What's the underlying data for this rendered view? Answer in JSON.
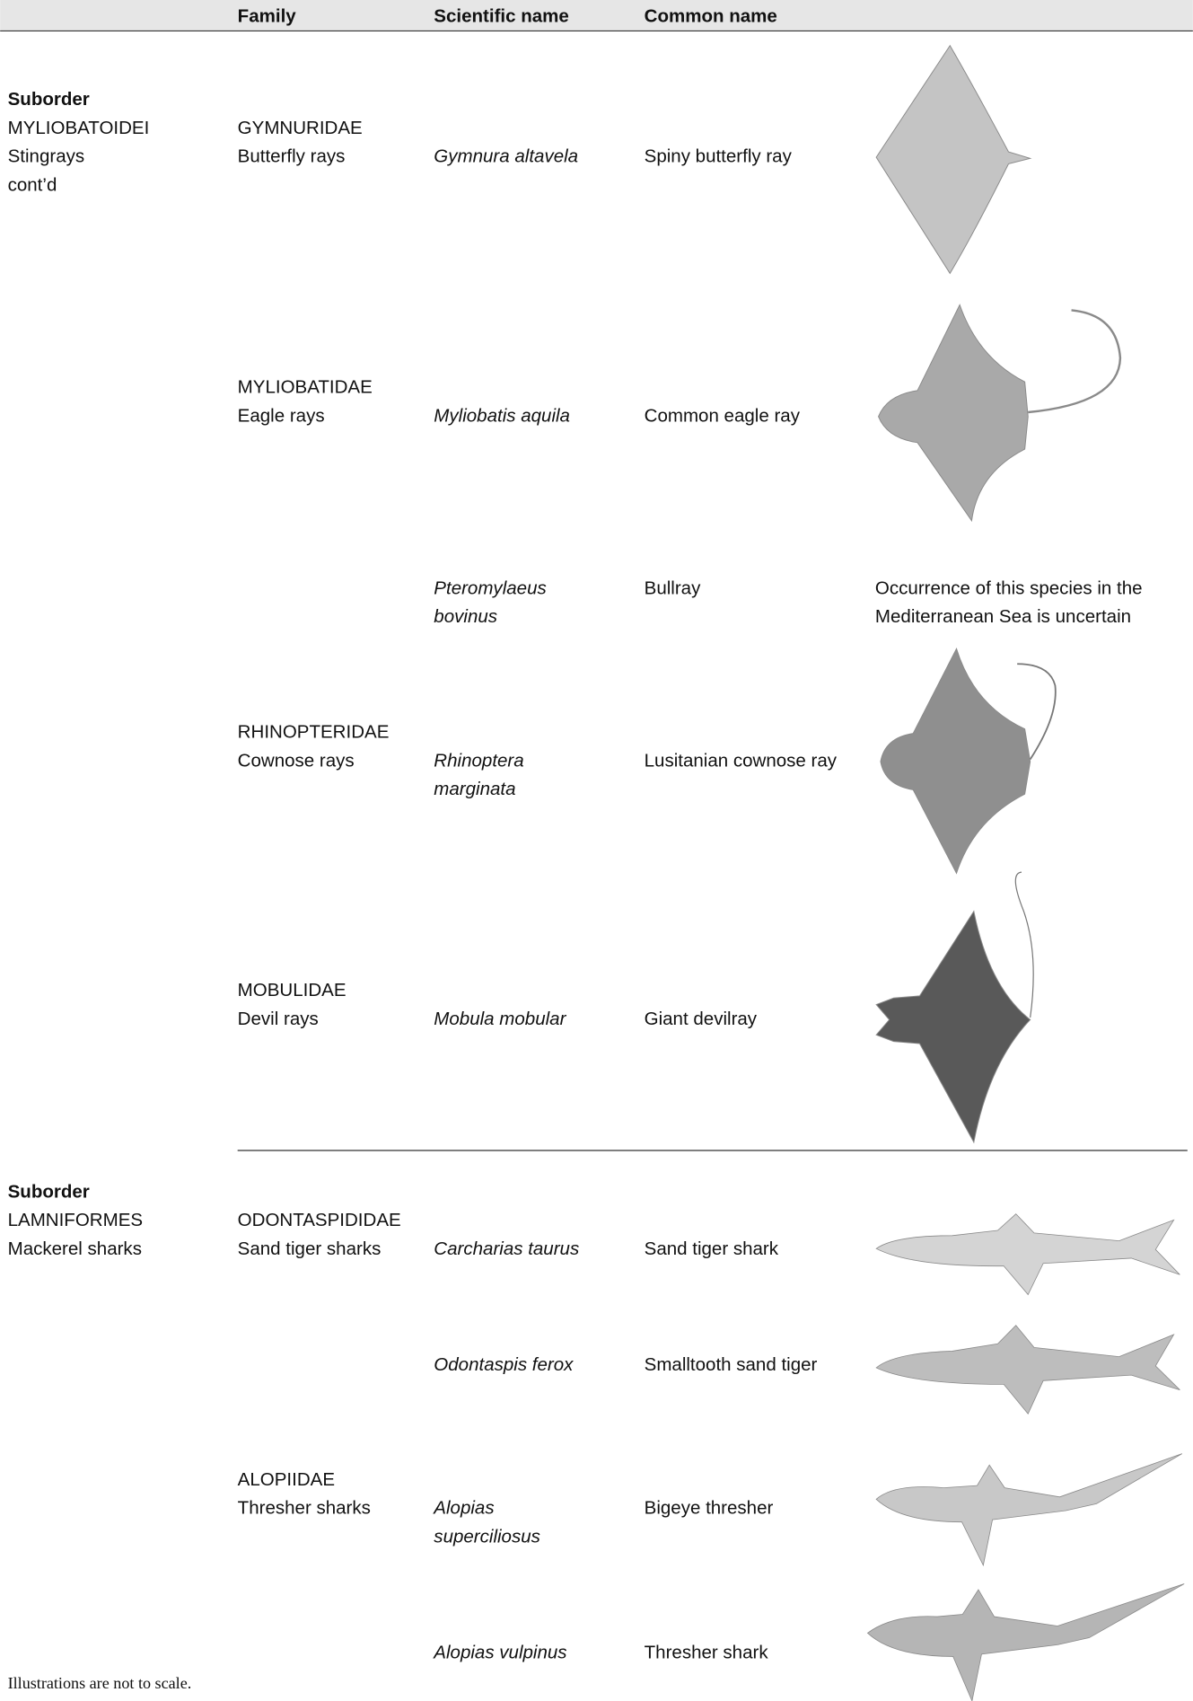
{
  "header": {
    "columns": [
      "Family",
      "Scientific name",
      "Common name"
    ]
  },
  "groups": [
    {
      "suborder": [
        "Suborder",
        "MYLIOBATOIDEI",
        "Stingrays",
        "cont’d"
      ],
      "rows": [
        {
          "family": [
            "GYMNURIDAE",
            "Butterfly rays"
          ],
          "scientific_name": [
            "Gymnura altavela"
          ],
          "common_name": "Spiny butterfly ray"
        },
        {
          "family": [
            "MYLIOBATIDAE",
            "Eagle rays"
          ],
          "scientific_name": [
            "Myliobatis aquila"
          ],
          "common_name": "Common eagle ray"
        },
        {
          "scientific_name": [
            "Pteromylaeus",
            "bovinus"
          ],
          "common_name": "Bullray",
          "note": [
            "Occurrence of this species in the",
            "Mediterranean Sea is uncertain"
          ]
        },
        {
          "family": [
            "RHINOPTERIDAE",
            "Cownose rays"
          ],
          "scientific_name": [
            "Rhinoptera",
            "marginata"
          ],
          "common_name": "Lusitanian cownose ray"
        },
        {
          "family": [
            "MOBULIDAE",
            "Devil rays"
          ],
          "scientific_name": [
            "Mobula mobular"
          ],
          "common_name": "Giant devilray"
        }
      ]
    },
    {
      "suborder": [
        "Suborder",
        "LAMNIFORMES",
        "Mackerel sharks"
      ],
      "rows": [
        {
          "family": [
            "ODONTASPIDIDAE",
            "Sand tiger sharks"
          ],
          "scientific_name": [
            "Carcharias taurus"
          ],
          "common_name": "Sand tiger shark"
        },
        {
          "scientific_name": [
            "Odontaspis ferox"
          ],
          "common_name": "Smalltooth sand tiger"
        },
        {
          "family": [
            "ALOPIIDAE",
            "Thresher sharks"
          ],
          "scientific_name": [
            "Alopias",
            "superciliosus"
          ],
          "common_name": "Bigeye thresher"
        },
        {
          "scientific_name": [
            "Alopias vulpinus"
          ],
          "common_name": "Thresher shark"
        }
      ]
    }
  ],
  "footer": "Illustrations are not to scale."
}
